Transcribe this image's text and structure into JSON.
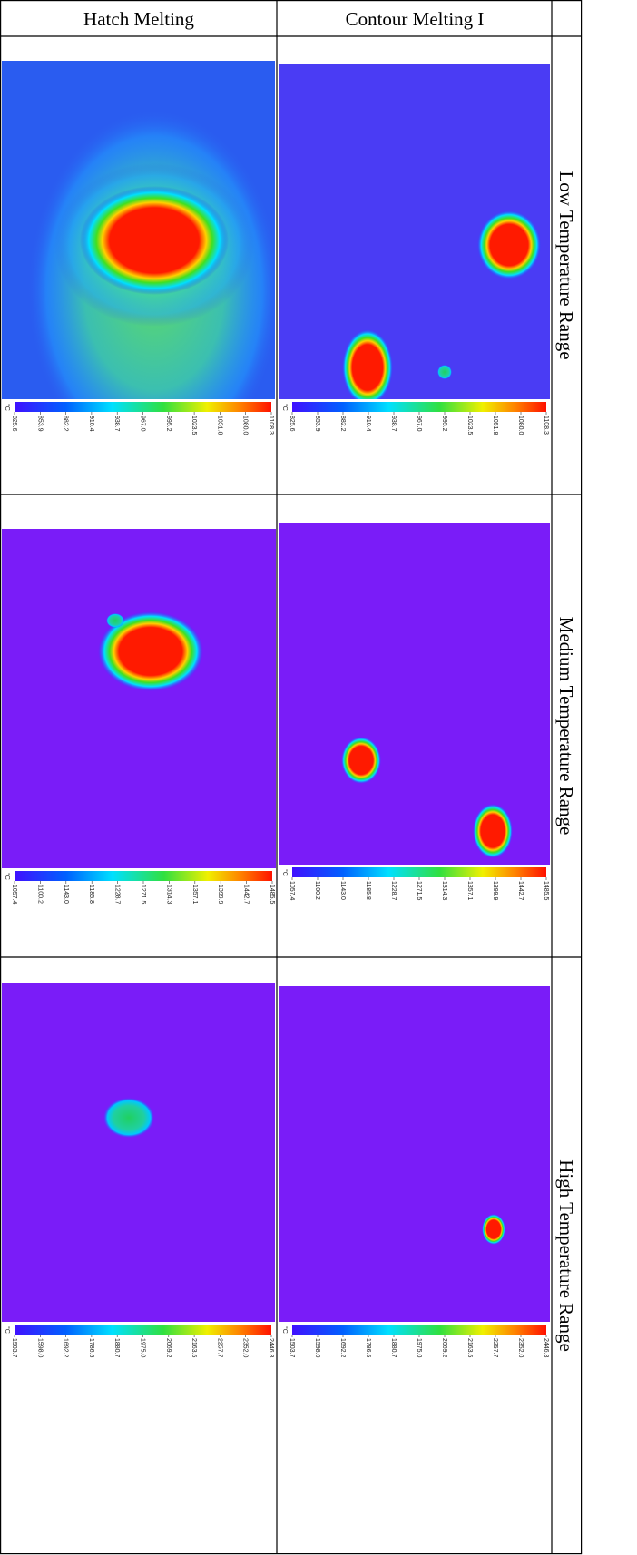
{
  "header": {
    "columns": [
      "Hatch Melting",
      "Contour Melting I"
    ]
  },
  "rows": [
    {
      "label": "Low Temperature Range",
      "unit": "°C",
      "scale": [
        "825.6",
        "853.9",
        "882.2",
        "910.4",
        "938.7",
        "967.0",
        "995.2",
        "1023.5",
        "1051.8",
        "1080.0",
        "1108.3"
      ]
    },
    {
      "label": "Medium Temperature Range",
      "unit": "°C",
      "scale": [
        "1057.4",
        "1100.2",
        "1143.0",
        "1185.8",
        "1228.7",
        "1271.5",
        "1314.3",
        "1357.1",
        "1399.9",
        "1442.7",
        "1485.5"
      ]
    },
    {
      "label": "High Temperature Range",
      "unit": "°C",
      "scale": [
        "1503.7",
        "1598.0",
        "1692.2",
        "1786.5",
        "1880.7",
        "1975.0",
        "2069.2",
        "2163.5",
        "2257.7",
        "2352.0",
        "2446.3"
      ]
    }
  ]
}
